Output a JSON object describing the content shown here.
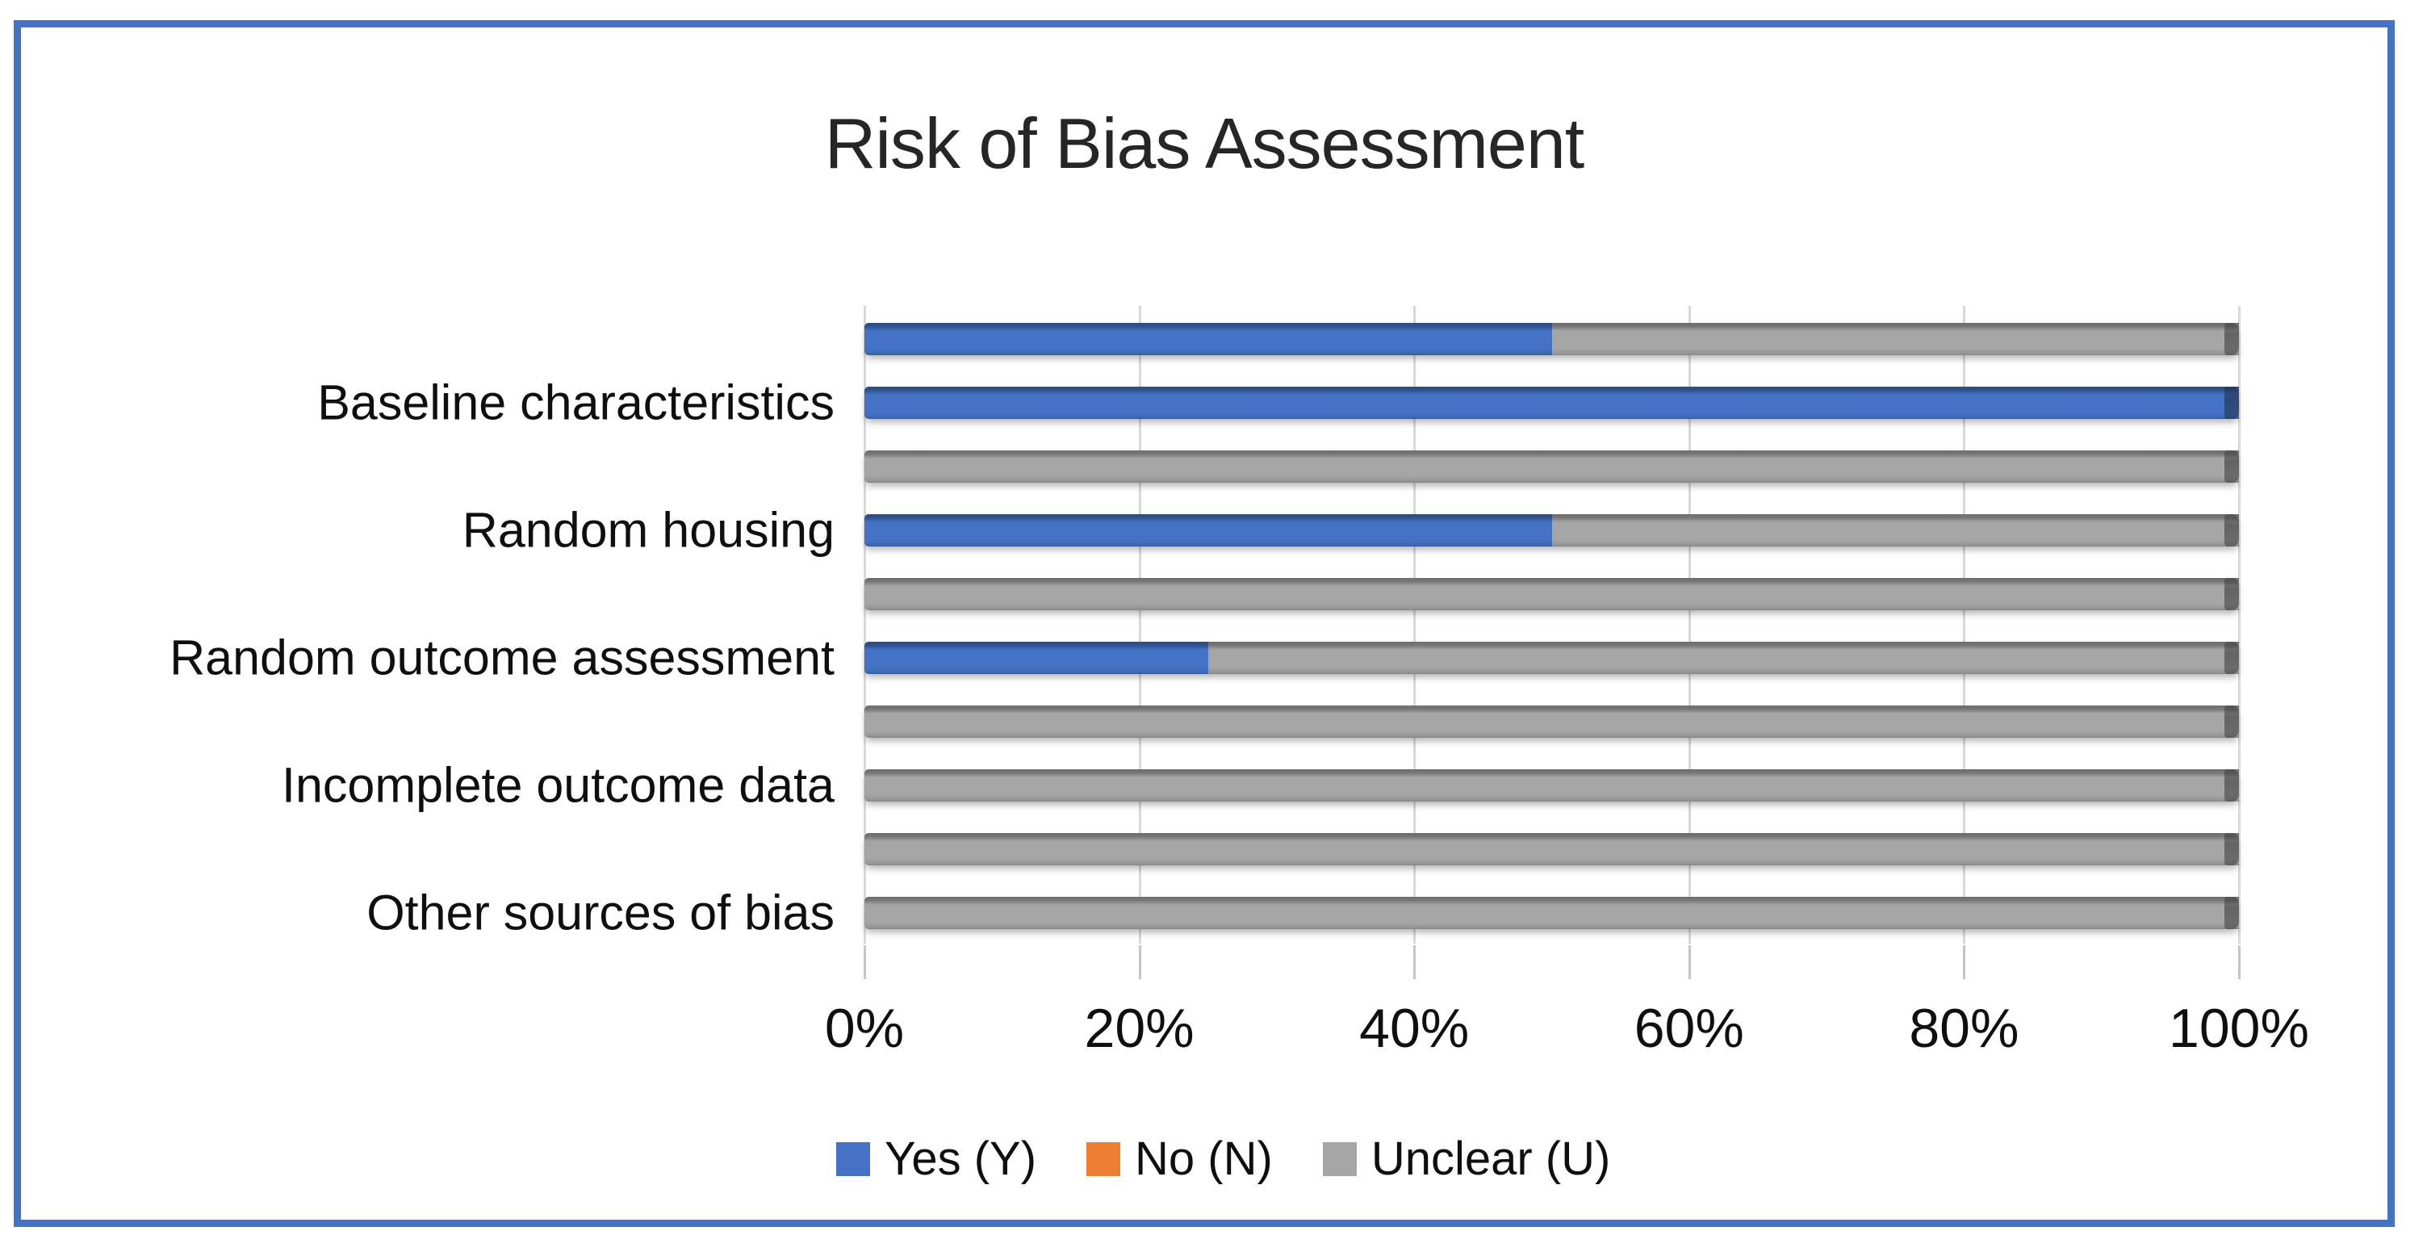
{
  "chart_data": {
    "type": "bar",
    "orientation": "horizontal",
    "stacked": true,
    "title": "Risk of Bias Assessment",
    "xlabel": "",
    "ylabel": "",
    "x_ticks": [
      "0%",
      "20%",
      "40%",
      "60%",
      "80%",
      "100%"
    ],
    "x_range": [
      0,
      100
    ],
    "grid": true,
    "legend_position": "bottom",
    "categories": [
      "",
      "Baseline characteristics",
      "",
      "Random housing",
      "",
      "Random outcome assessment",
      "",
      "Incomplete outcome data",
      "",
      "Other sources of bias"
    ],
    "series": [
      {
        "name": "Yes (Y)",
        "color": "#4472C4",
        "values": [
          50,
          100,
          0,
          50,
          0,
          25,
          0,
          0,
          0,
          0
        ]
      },
      {
        "name": "No (N)",
        "color": "#ED7D31",
        "values": [
          0,
          0,
          0,
          0,
          0,
          0,
          0,
          0,
          0,
          0
        ]
      },
      {
        "name": "Unclear (U)",
        "color": "#A5A5A5",
        "values": [
          50,
          0,
          100,
          50,
          100,
          75,
          100,
          100,
          100,
          100
        ]
      }
    ]
  },
  "style": {
    "frame_border_color": "#4472C4",
    "gridline_color": "#D9D9D9",
    "tick_color": "#C6C6C6",
    "text_color": "#0F0F0F"
  }
}
